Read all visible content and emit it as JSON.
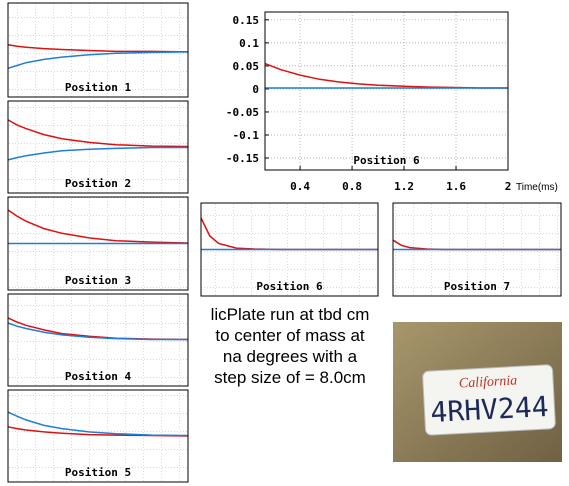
{
  "chart_data": [
    {
      "type": "line",
      "title": "Position 1",
      "x": [
        0,
        0.05,
        0.1,
        0.2,
        0.3,
        0.45,
        0.6,
        0.8,
        1
      ],
      "xlim": [
        0,
        1
      ],
      "ylim": [
        -1,
        1
      ],
      "series": [
        {
          "color": "#dd1111",
          "values": [
            0.11,
            0.08,
            0.06,
            0.03,
            0.01,
            -0.01,
            -0.03,
            -0.03,
            -0.04
          ]
        },
        {
          "color": "#1e7fd8",
          "values": [
            -0.39,
            -0.33,
            -0.27,
            -0.2,
            -0.15,
            -0.1,
            -0.07,
            -0.05,
            -0.04
          ]
        }
      ]
    },
    {
      "type": "line",
      "title": "Position 2",
      "x": [
        0,
        0.05,
        0.1,
        0.2,
        0.3,
        0.45,
        0.6,
        0.8,
        1
      ],
      "xlim": [
        0,
        1
      ],
      "ylim": [
        -1,
        1
      ],
      "series": [
        {
          "color": "#dd1111",
          "values": [
            0.59,
            0.48,
            0.4,
            0.27,
            0.18,
            0.1,
            0.05,
            0.02,
            0.01
          ]
        },
        {
          "color": "#1e7fd8",
          "values": [
            -0.28,
            -0.23,
            -0.19,
            -0.13,
            -0.08,
            -0.05,
            -0.03,
            -0.01,
            -0.01
          ]
        }
      ]
    },
    {
      "type": "line",
      "title": "Position 3",
      "x": [
        0,
        0.05,
        0.1,
        0.2,
        0.3,
        0.45,
        0.6,
        0.8,
        1
      ],
      "xlim": [
        0,
        1
      ],
      "ylim": [
        -1,
        1
      ],
      "series": [
        {
          "color": "#dd1111",
          "values": [
            0.72,
            0.59,
            0.48,
            0.32,
            0.22,
            0.12,
            0.06,
            0.03,
            0.01
          ]
        },
        {
          "color": "#1e7fd8",
          "values": [
            0,
            0,
            0,
            0,
            0,
            0,
            0,
            0,
            0
          ]
        }
      ]
    },
    {
      "type": "line",
      "title": "Position 4",
      "x": [
        0,
        0.05,
        0.1,
        0.2,
        0.3,
        0.45,
        0.6,
        0.8,
        1
      ],
      "xlim": [
        0,
        1
      ],
      "ylim": [
        -1,
        1
      ],
      "series": [
        {
          "color": "#dd1111",
          "values": [
            0.48,
            0.39,
            0.32,
            0.22,
            0.14,
            0.08,
            0.04,
            0.02,
            0.01
          ]
        },
        {
          "color": "#1e7fd8",
          "values": [
            0.37,
            0.3,
            0.25,
            0.17,
            0.11,
            0.06,
            0.03,
            0.01,
            0.01
          ]
        }
      ]
    },
    {
      "type": "line",
      "title": "Position 5",
      "x": [
        0,
        0.05,
        0.1,
        0.2,
        0.3,
        0.45,
        0.6,
        0.8,
        1
      ],
      "xlim": [
        0,
        1
      ],
      "ylim": [
        -1,
        1
      ],
      "series": [
        {
          "color": "#dd1111",
          "values": [
            0.2,
            0.16,
            0.13,
            0.09,
            0.06,
            0.03,
            0.02,
            0.01,
            0
          ]
        },
        {
          "color": "#1e7fd8",
          "values": [
            0.52,
            0.43,
            0.35,
            0.23,
            0.16,
            0.09,
            0.05,
            0.02,
            0.01
          ]
        }
      ]
    },
    {
      "type": "line",
      "title": "Position 6",
      "x": [
        0.13,
        0.25,
        0.4,
        0.55,
        0.7,
        0.85,
        1.0,
        1.2,
        1.4,
        1.6,
        1.8,
        2.0
      ],
      "xlim": [
        0.13,
        2
      ],
      "ylim": [
        -0.176,
        0.167
      ],
      "x_label": "Time(ms)",
      "xticks": [
        0.4,
        0.8,
        1.2,
        1.6,
        2
      ],
      "yticks": [
        0.15,
        0.1,
        0.05,
        0,
        -0.05,
        -0.1,
        -0.15
      ],
      "grid": true,
      "series": [
        {
          "color": "#dd1111",
          "values": [
            0.055,
            0.042,
            0.03,
            0.021,
            0.015,
            0.011,
            0.008,
            0.006,
            0.004,
            0.003,
            0.002,
            0.002
          ]
        },
        {
          "color": "#1e7fd8",
          "values": [
            0.002,
            0.002,
            0.002,
            0.002,
            0.002,
            0.002,
            0.002,
            0.002,
            0.002,
            0.002,
            0.002,
            0.002
          ]
        }
      ]
    },
    {
      "type": "line",
      "title": "Position 6",
      "x": [
        0,
        0.05,
        0.1,
        0.2,
        0.3,
        0.45,
        0.6,
        0.8,
        1
      ],
      "xlim": [
        0,
        1
      ],
      "ylim": [
        -1,
        1
      ],
      "series": [
        {
          "color": "#dd1111",
          "values": [
            0.68,
            0.29,
            0.13,
            0.03,
            0.01,
            0,
            0,
            0,
            0
          ]
        },
        {
          "color": "#1e7fd8",
          "values": [
            0,
            0,
            0,
            0,
            0,
            0,
            0,
            0,
            0
          ]
        }
      ]
    },
    {
      "type": "line",
      "title": "Position 7",
      "x": [
        0,
        0.05,
        0.1,
        0.2,
        0.3,
        0.45,
        0.6,
        0.8,
        1
      ],
      "xlim": [
        0,
        1
      ],
      "ylim": [
        -1,
        1
      ],
      "series": [
        {
          "color": "#dd1111",
          "values": [
            0.2,
            0.09,
            0.04,
            0.01,
            0,
            0,
            0,
            0,
            0
          ]
        },
        {
          "color": "#1e7fd8",
          "values": [
            0,
            0,
            0,
            0,
            0,
            0,
            0,
            0,
            0
          ]
        }
      ]
    }
  ],
  "note": {
    "lines": [
      "licPlate run at tbd cm",
      "to center of mass at",
      "na degrees with a",
      "step size of = 8.0cm"
    ]
  },
  "photo": {
    "plate_state": "California",
    "plate_number": "4RHV244"
  }
}
